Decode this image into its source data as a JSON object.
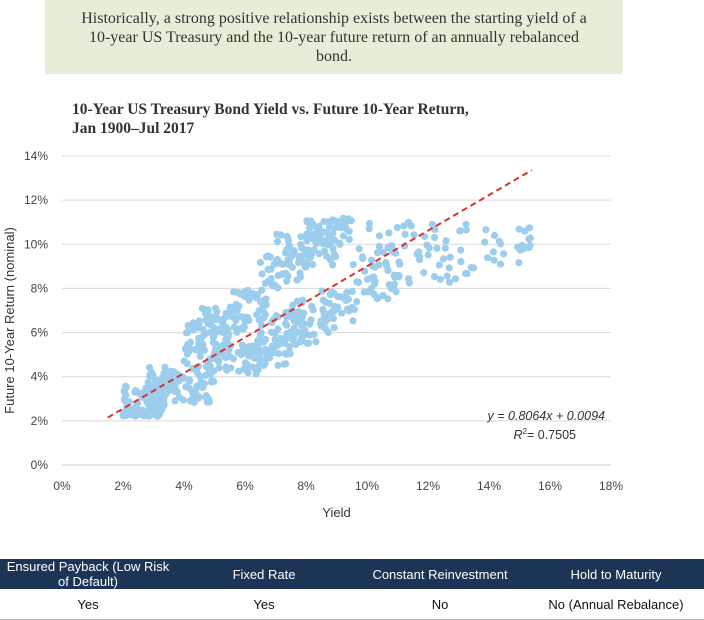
{
  "banner": {
    "text": "Historically, a strong positive relationship exists between the starting yield of a 10-year US Treasury and the 10-year future return of an annually rebalanced bond."
  },
  "chart_data": {
    "type": "scatter",
    "title_line1": "10-Year US Treasury Bond Yield vs. Future 10-Year Return,",
    "title_line2": "Jan 1900–Jul 2017",
    "xlabel": "Yield",
    "ylabel": "Future 10-Year Return (nominal)",
    "xlim": [
      0,
      0.18
    ],
    "ylim": [
      0,
      0.14
    ],
    "xticks": [
      0,
      0.02,
      0.04,
      0.06,
      0.08,
      0.1,
      0.12,
      0.14,
      0.16,
      0.18
    ],
    "xtick_labels": [
      "0%",
      "2%",
      "4%",
      "6%",
      "8%",
      "10%",
      "12%",
      "14%",
      "16%",
      "18%"
    ],
    "yticks": [
      0,
      0.02,
      0.04,
      0.06,
      0.08,
      0.1,
      0.12,
      0.14
    ],
    "ytick_labels": [
      "0%",
      "2%",
      "4%",
      "6%",
      "8%",
      "10%",
      "12%",
      "14%"
    ],
    "grid": "horizontal",
    "point_color": "#9dcdec",
    "trend_color": "#d9332f",
    "trendline": {
      "slope": 0.8064,
      "intercept": 0.0094,
      "x_range": [
        0.015,
        0.154
      ]
    },
    "equation_text": "y = 0.8064x + 0.0094",
    "r2_value": "= 0.7505",
    "clusters": [
      {
        "x": [
          0.02,
          0.032
        ],
        "y": [
          0.022,
          0.026
        ],
        "n": 60
      },
      {
        "x": [
          0.02,
          0.035
        ],
        "y": [
          0.025,
          0.036
        ],
        "n": 60
      },
      {
        "x": [
          0.028,
          0.05
        ],
        "y": [
          0.028,
          0.045
        ],
        "n": 90
      },
      {
        "x": [
          0.04,
          0.055
        ],
        "y": [
          0.045,
          0.065
        ],
        "n": 50
      },
      {
        "x": [
          0.05,
          0.065
        ],
        "y": [
          0.04,
          0.055
        ],
        "n": 50
      },
      {
        "x": [
          0.045,
          0.06
        ],
        "y": [
          0.06,
          0.072
        ],
        "n": 45
      },
      {
        "x": [
          0.055,
          0.068
        ],
        "y": [
          0.065,
          0.08
        ],
        "n": 35
      },
      {
        "x": [
          0.06,
          0.075
        ],
        "y": [
          0.045,
          0.06
        ],
        "n": 40
      },
      {
        "x": [
          0.065,
          0.08
        ],
        "y": [
          0.08,
          0.095
        ],
        "n": 35
      },
      {
        "x": [
          0.07,
          0.09
        ],
        "y": [
          0.09,
          0.105
        ],
        "n": 60
      },
      {
        "x": [
          0.08,
          0.095
        ],
        "y": [
          0.1,
          0.112
        ],
        "n": 50
      },
      {
        "x": [
          0.065,
          0.08
        ],
        "y": [
          0.05,
          0.07
        ],
        "n": 45
      },
      {
        "x": [
          0.075,
          0.09
        ],
        "y": [
          0.055,
          0.075
        ],
        "n": 45
      },
      {
        "x": [
          0.085,
          0.097
        ],
        "y": [
          0.065,
          0.08
        ],
        "n": 30
      },
      {
        "x": [
          0.095,
          0.11
        ],
        "y": [
          0.075,
          0.1
        ],
        "n": 35
      },
      {
        "x": [
          0.1,
          0.12
        ],
        "y": [
          0.08,
          0.11
        ],
        "n": 35
      },
      {
        "x": [
          0.12,
          0.14
        ],
        "y": [
          0.08,
          0.11
        ],
        "n": 30
      },
      {
        "x": [
          0.14,
          0.154
        ],
        "y": [
          0.09,
          0.11
        ],
        "n": 20
      }
    ]
  },
  "table": {
    "headers": [
      "Ensured Payback (Low Risk of Default)",
      "Fixed Rate",
      "Constant Reinvestment",
      "Hold to Maturity"
    ],
    "values": [
      "Yes",
      "Yes",
      "No",
      "No (Annual Rebalance)"
    ]
  }
}
